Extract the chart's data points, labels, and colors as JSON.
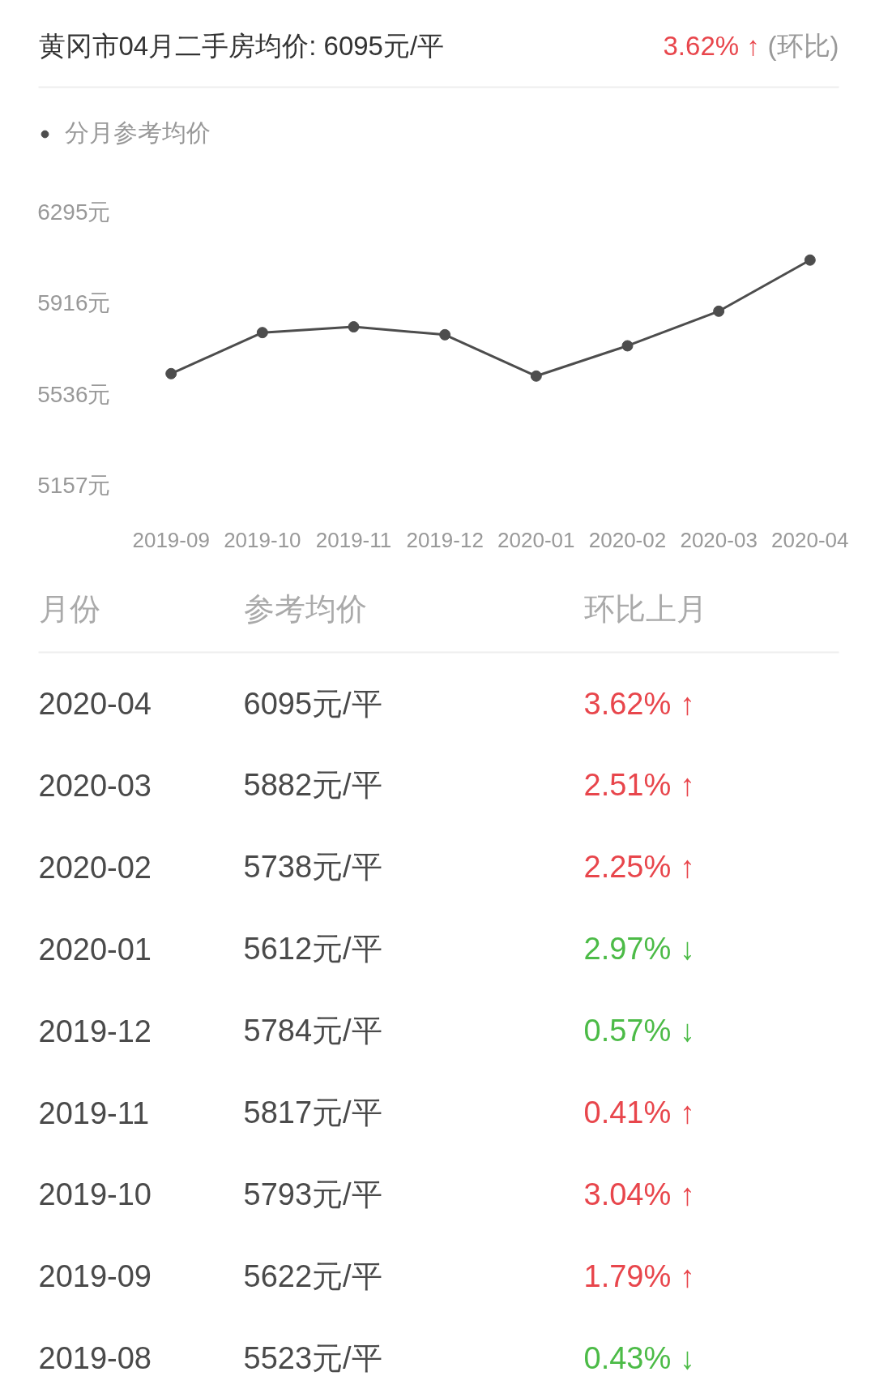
{
  "chart_data": [
    {
      "type": "line",
      "title": "黄冈市04月二手房均价: 6095元/平",
      "annotations": [
        "3.62% ↑",
        "(环比)"
      ],
      "categories": [
        "2019-09",
        "2019-10",
        "2019-11",
        "2019-12",
        "2020-01",
        "2020-02",
        "2020-03",
        "2020-04"
      ],
      "series": [
        {
          "name": "分月参考均价",
          "color": "#4d4d4d",
          "values": [
            5622,
            5793,
            5817,
            5784,
            5612,
            5738,
            5882,
            6095
          ]
        }
      ],
      "ylim": [
        5157,
        6295
      ],
      "yticks": [
        {
          "value": 6295,
          "label": "6295元"
        },
        {
          "value": 5916,
          "label": "5916元"
        },
        {
          "value": 5536,
          "label": "5536元"
        },
        {
          "value": 5157,
          "label": "5157元"
        }
      ],
      "legend": "top left",
      "marker": "circle",
      "line_style": "solid"
    },
    {
      "type": "other",
      "xlabel": "月份",
      "categories": [
        "2020-04",
        "2020-03",
        "2020-02",
        "2020-01",
        "2019-12",
        "2019-11",
        "2019-10",
        "2019-09",
        "2019-08"
      ],
      "series": [
        {
          "name": "参考均价",
          "values": [
            6095,
            5882,
            5738,
            5612,
            5784,
            5817,
            5793,
            5622,
            5523
          ],
          "value_labels": [
            "6095元/平",
            "5882元/平",
            "5738元/平",
            "5612元/平",
            "5784元/平",
            "5817元/平",
            "5793元/平",
            "5622元/平",
            "5523元/平"
          ]
        },
        {
          "name": "环比上月",
          "values": [
            3.62,
            2.51,
            2.25,
            2.97,
            0.57,
            0.41,
            3.04,
            1.79,
            0.43
          ],
          "value_labels": [
            "3.62% ↑",
            "2.51% ↑",
            "2.25% ↑",
            "2.97% ↓",
            "0.57% ↓",
            "0.41% ↑",
            "3.04% ↑",
            "1.79% ↑",
            "0.43% ↓"
          ],
          "colors": [
            "#e8464c",
            "#e8464c",
            "#e8464c",
            "#4cbb47",
            "#4cbb47",
            "#e8464c",
            "#e8464c",
            "#e8464c",
            "#4cbb47"
          ]
        }
      ]
    }
  ]
}
